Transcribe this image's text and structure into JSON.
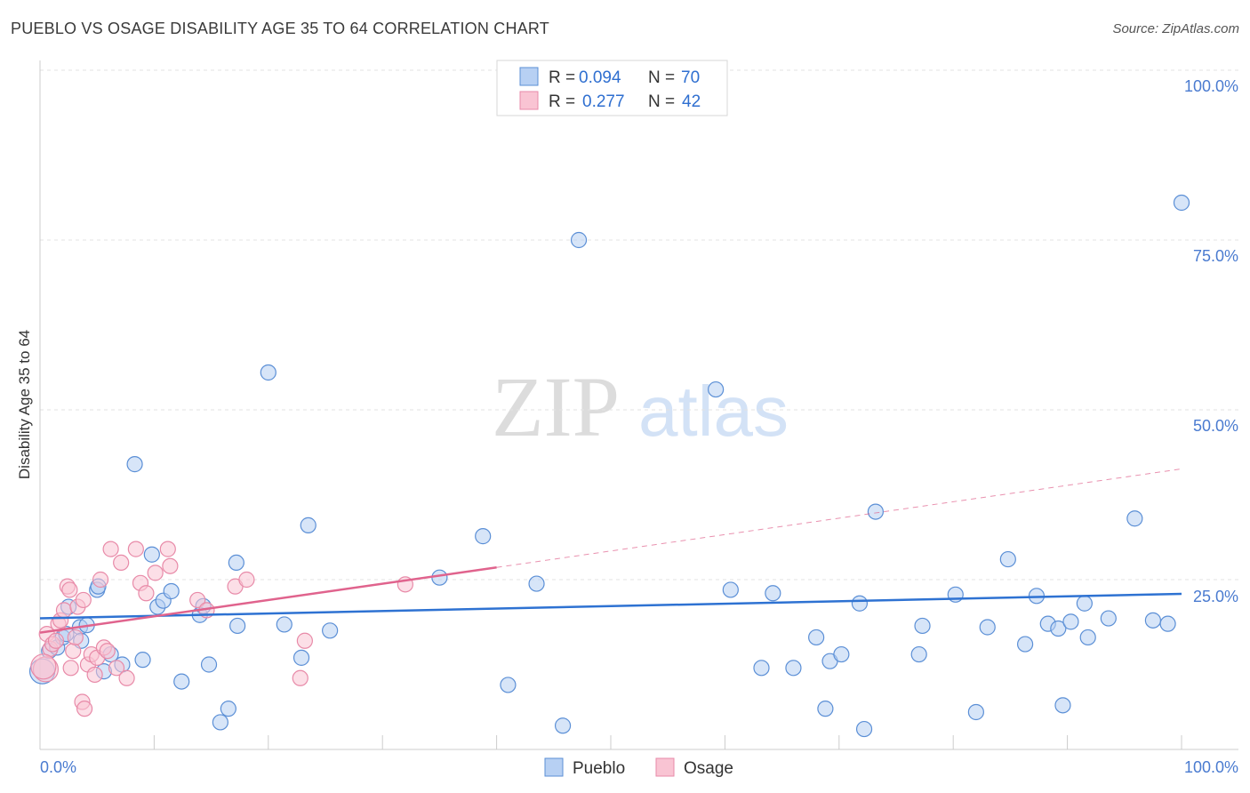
{
  "title": "PUEBLO VS OSAGE DISABILITY AGE 35 TO 64 CORRELATION CHART",
  "source": "Source: ZipAtlas.com",
  "watermark": {
    "zip": "ZIP",
    "atlas": "atlas"
  },
  "legend": {
    "r_label": "R =",
    "n_label": "N =",
    "items": [
      {
        "name": "Pueblo",
        "r": "0.094",
        "n": "70",
        "fill": "#b7d0f3",
        "stroke": "#5b8fd6"
      },
      {
        "name": "Osage",
        "r": "0.277",
        "n": "42",
        "fill": "#f9c4d3",
        "stroke": "#e88aa8"
      }
    ]
  },
  "chart_data": {
    "type": "scatter",
    "xlabel": "",
    "ylabel": "Disability Age 35 to 64",
    "xlim": [
      0,
      100
    ],
    "ylim": [
      0,
      100
    ],
    "x_tick_labels": [
      "0.0%",
      "100.0%"
    ],
    "y_tick_labels": [
      "25.0%",
      "50.0%",
      "75.0%",
      "100.0%"
    ],
    "y_ticks": [
      25,
      50,
      75,
      100
    ],
    "series": [
      {
        "name": "Pueblo",
        "color": "#5b8fd6",
        "fill": "#b7d0f3",
        "trend": {
          "x": [
            0,
            100
          ],
          "y": [
            19.3,
            22.9
          ],
          "color": "#2e72d2"
        },
        "points": [
          [
            0.2,
            11.5
          ],
          [
            0.8,
            14.5
          ],
          [
            1.5,
            15.0
          ],
          [
            2.0,
            16.5
          ],
          [
            2.3,
            17.0
          ],
          [
            2.5,
            21.0
          ],
          [
            3.5,
            18.0
          ],
          [
            3.6,
            16.0
          ],
          [
            4.1,
            18.3
          ],
          [
            5.0,
            23.5
          ],
          [
            5.1,
            24.0
          ],
          [
            5.6,
            11.5
          ],
          [
            6.2,
            14.0
          ],
          [
            7.2,
            12.5
          ],
          [
            8.3,
            42.0
          ],
          [
            9.0,
            13.2
          ],
          [
            9.8,
            28.7
          ],
          [
            10.3,
            21.0
          ],
          [
            10.8,
            21.9
          ],
          [
            11.5,
            23.3
          ],
          [
            12.4,
            10.0
          ],
          [
            14.0,
            19.8
          ],
          [
            14.3,
            21.1
          ],
          [
            14.8,
            12.5
          ],
          [
            16.5,
            6.0
          ],
          [
            15.8,
            4.0
          ],
          [
            17.2,
            27.5
          ],
          [
            17.3,
            18.2
          ],
          [
            20.0,
            55.5
          ],
          [
            21.4,
            18.4
          ],
          [
            22.9,
            13.5
          ],
          [
            23.5,
            33.0
          ],
          [
            25.4,
            17.5
          ],
          [
            35.0,
            25.3
          ],
          [
            38.8,
            31.4
          ],
          [
            41.0,
            9.5
          ],
          [
            43.5,
            24.4
          ],
          [
            45.8,
            3.5
          ],
          [
            47.2,
            75.0
          ],
          [
            59.2,
            53.0
          ],
          [
            60.5,
            23.5
          ],
          [
            63.2,
            12.0
          ],
          [
            64.2,
            23.0
          ],
          [
            66.0,
            12.0
          ],
          [
            68.0,
            16.5
          ],
          [
            68.8,
            6.0
          ],
          [
            69.2,
            13.0
          ],
          [
            70.2,
            14.0
          ],
          [
            71.8,
            21.5
          ],
          [
            72.2,
            3.0
          ],
          [
            73.2,
            35.0
          ],
          [
            77.0,
            14.0
          ],
          [
            77.3,
            18.2
          ],
          [
            80.2,
            22.8
          ],
          [
            82.0,
            5.5
          ],
          [
            83.0,
            18.0
          ],
          [
            84.8,
            28.0
          ],
          [
            86.3,
            15.5
          ],
          [
            87.3,
            22.6
          ],
          [
            88.3,
            18.5
          ],
          [
            89.2,
            17.8
          ],
          [
            89.6,
            6.5
          ],
          [
            90.3,
            18.8
          ],
          [
            91.5,
            21.5
          ],
          [
            91.8,
            16.5
          ],
          [
            93.6,
            19.3
          ],
          [
            95.9,
            34.0
          ],
          [
            97.5,
            19.0
          ],
          [
            98.8,
            18.5
          ],
          [
            100.0,
            80.5
          ]
        ]
      },
      {
        "name": "Osage",
        "color": "#e88aa8",
        "fill": "#f9c4d3",
        "trend": {
          "x": [
            0,
            40
          ],
          "y": [
            17.2,
            26.8
          ],
          "color": "#e0638d"
        },
        "trend_extension": {
          "x": [
            40,
            100
          ],
          "y": [
            26.8,
            41.3
          ]
        },
        "points": [
          [
            0.5,
            11.8
          ],
          [
            0.6,
            17.0
          ],
          [
            0.9,
            14.8
          ],
          [
            1.1,
            15.5
          ],
          [
            1.4,
            16.0
          ],
          [
            1.6,
            18.5
          ],
          [
            1.8,
            19.0
          ],
          [
            2.1,
            20.5
          ],
          [
            2.4,
            24.0
          ],
          [
            2.6,
            23.5
          ],
          [
            2.7,
            12.0
          ],
          [
            2.9,
            14.5
          ],
          [
            3.1,
            16.5
          ],
          [
            3.3,
            21.0
          ],
          [
            3.7,
            7.0
          ],
          [
            3.8,
            22.0
          ],
          [
            3.9,
            6.0
          ],
          [
            4.2,
            12.5
          ],
          [
            4.5,
            14.0
          ],
          [
            4.8,
            11.0
          ],
          [
            5.0,
            13.5
          ],
          [
            5.3,
            25.0
          ],
          [
            5.6,
            15.0
          ],
          [
            5.9,
            14.5
          ],
          [
            6.2,
            29.5
          ],
          [
            6.7,
            12.0
          ],
          [
            7.1,
            27.5
          ],
          [
            7.6,
            10.5
          ],
          [
            8.4,
            29.5
          ],
          [
            8.8,
            24.5
          ],
          [
            9.3,
            23.0
          ],
          [
            10.1,
            26.0
          ],
          [
            11.2,
            29.5
          ],
          [
            11.4,
            27.0
          ],
          [
            13.8,
            22.0
          ],
          [
            14.6,
            20.5
          ],
          [
            17.1,
            24.0
          ],
          [
            18.1,
            25.0
          ],
          [
            22.8,
            10.5
          ],
          [
            23.2,
            16.0
          ],
          [
            32.0,
            24.3
          ],
          [
            0.3,
            12.2
          ]
        ]
      }
    ]
  }
}
